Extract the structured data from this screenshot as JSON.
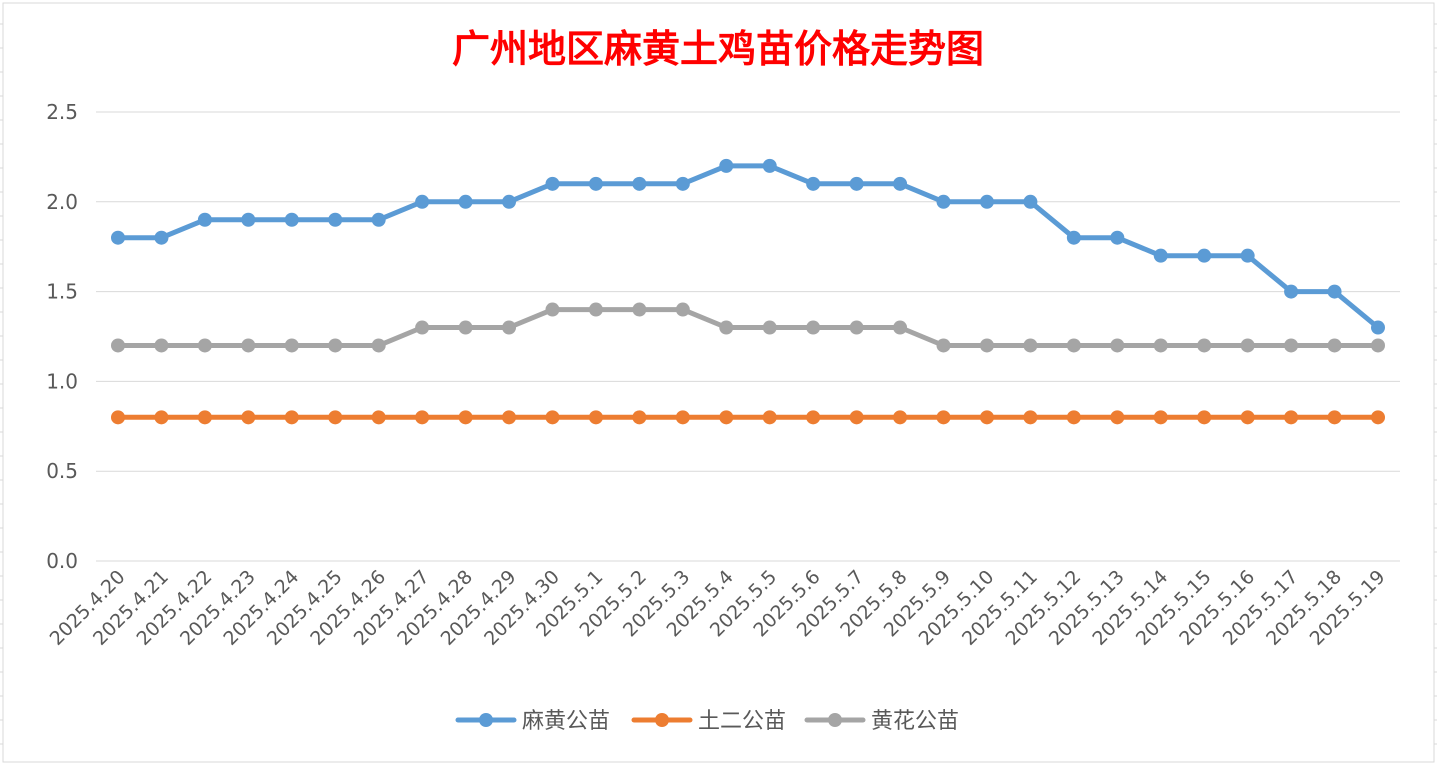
{
  "colors": {
    "background": "#ffffff",
    "sheet_grid": "#d9d9d9",
    "plot_grid": "#d9d9d9",
    "title": "#ff0000",
    "axis_text": "#595959"
  },
  "chart_data": {
    "type": "line",
    "title": "广州地区麻黄土鸡苗价格走势图",
    "xlabel": "",
    "ylabel": "",
    "ylim": [
      0,
      2.5
    ],
    "ytick_step": 0.5,
    "ytick_labels": [
      "0.0",
      "0.5",
      "1.0",
      "1.5",
      "2.0",
      "2.5"
    ],
    "grid": true,
    "legend_position": "bottom",
    "categories": [
      "2025.4.20",
      "2025.4.21",
      "2025.4.22",
      "2025.4.23",
      "2025.4.24",
      "2025.4.25",
      "2025.4.26",
      "2025.4.27",
      "2025.4.28",
      "2025.4.29",
      "2025.4.30",
      "2025.5.1",
      "2025.5.2",
      "2025.5.3",
      "2025.5.4",
      "2025.5.5",
      "2025.5.6",
      "2025.5.7",
      "2025.5.8",
      "2025.5.9",
      "2025.5.10",
      "2025.5.11",
      "2025.5.12",
      "2025.5.13",
      "2025.5.14",
      "2025.5.15",
      "2025.5.16",
      "2025.5.17",
      "2025.5.18",
      "2025.5.19"
    ],
    "series": [
      {
        "name": "麻黄公苗",
        "color": "#5b9bd5",
        "values": [
          1.8,
          1.8,
          1.9,
          1.9,
          1.9,
          1.9,
          1.9,
          2.0,
          2.0,
          2.0,
          2.1,
          2.1,
          2.1,
          2.1,
          2.2,
          2.2,
          2.1,
          2.1,
          2.1,
          2.0,
          2.0,
          2.0,
          1.8,
          1.8,
          1.7,
          1.7,
          1.7,
          1.5,
          1.5,
          1.3
        ]
      },
      {
        "name": "土二公苗",
        "color": "#ed7d31",
        "values": [
          0.8,
          0.8,
          0.8,
          0.8,
          0.8,
          0.8,
          0.8,
          0.8,
          0.8,
          0.8,
          0.8,
          0.8,
          0.8,
          0.8,
          0.8,
          0.8,
          0.8,
          0.8,
          0.8,
          0.8,
          0.8,
          0.8,
          0.8,
          0.8,
          0.8,
          0.8,
          0.8,
          0.8,
          0.8,
          0.8
        ]
      },
      {
        "name": "黄花公苗",
        "color": "#a5a5a5",
        "values": [
          1.2,
          1.2,
          1.2,
          1.2,
          1.2,
          1.2,
          1.2,
          1.3,
          1.3,
          1.3,
          1.4,
          1.4,
          1.4,
          1.4,
          1.3,
          1.3,
          1.3,
          1.3,
          1.3,
          1.2,
          1.2,
          1.2,
          1.2,
          1.2,
          1.2,
          1.2,
          1.2,
          1.2,
          1.2,
          1.2
        ]
      }
    ]
  }
}
